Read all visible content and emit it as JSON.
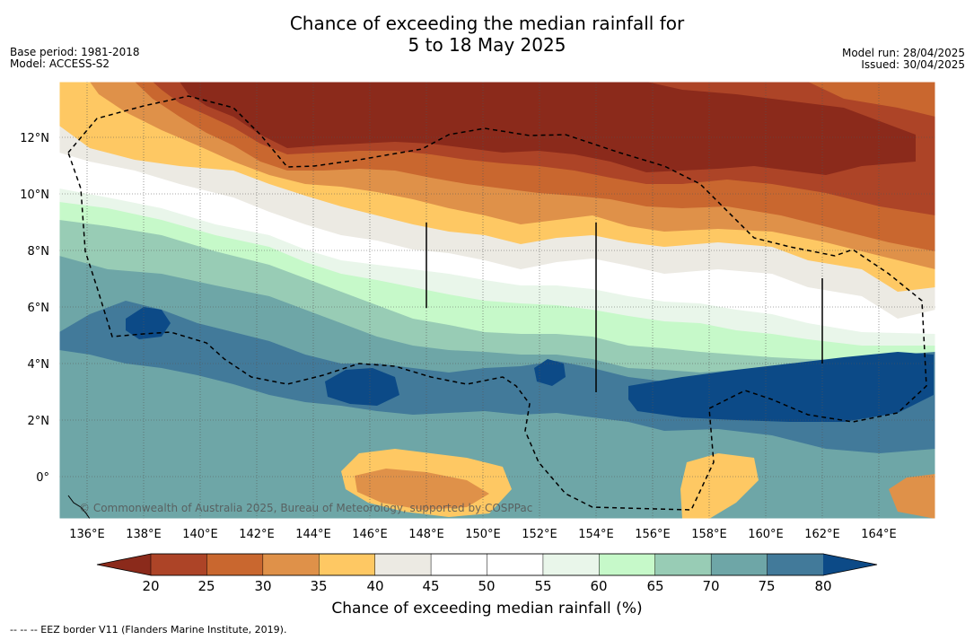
{
  "title": {
    "line1": "Chance of exceeding the median rainfall for",
    "line2": "5 to 18 May 2025"
  },
  "meta_left": {
    "line1": "Base period: 1981-2018",
    "line2": "Model: ACCESS-S2"
  },
  "meta_right": {
    "line1": "Model run: 28/04/2025",
    "line2": "Issued: 30/04/2025"
  },
  "map": {
    "copyright": "© Commonwealth of Australia 2025, Bureau of Meteorology, supported by COSPPac",
    "lon_labels": [
      "136°E",
      "138°E",
      "140°E",
      "142°E",
      "144°E",
      "146°E",
      "148°E",
      "150°E",
      "152°E",
      "154°E",
      "156°E",
      "158°E",
      "160°E",
      "162°E",
      "164°E"
    ],
    "lat_labels": [
      "12°N",
      "10°N",
      "8°N",
      "6°N",
      "4°N",
      "2°N",
      "0°"
    ]
  },
  "colorbar": {
    "title": "Chance of exceeding median rainfall (%)",
    "ticks": [
      "20",
      "25",
      "30",
      "35",
      "40",
      "45",
      "50",
      "55",
      "60",
      "65",
      "70",
      "75",
      "80"
    ],
    "colors": [
      "#8b2a1b",
      "#ad4427",
      "#c9672f",
      "#df9149",
      "#fec863",
      "#eceae3",
      "#ffffff",
      "#ffffff",
      "#e9f6ea",
      "#c6f9c9",
      "#98ccb5",
      "#6ea6a7",
      "#427a9a",
      "#0c4a87"
    ]
  },
  "footnote": "--  --  -- EEZ border V11 (Flanders Marine Institute, 2019)."
}
